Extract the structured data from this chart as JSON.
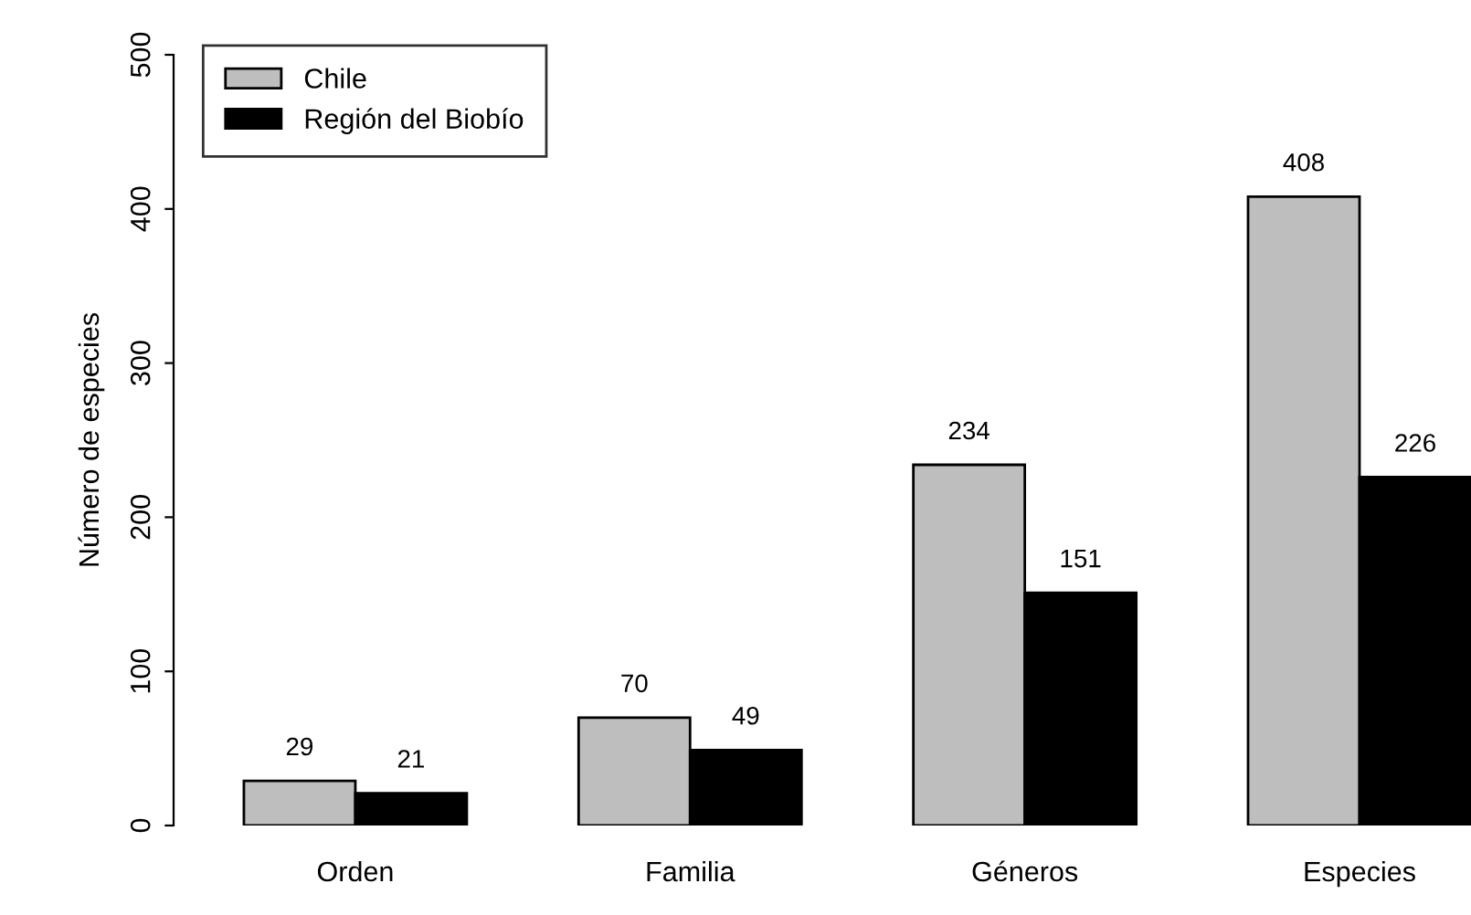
{
  "chart_data": {
    "type": "bar",
    "ylabel": "Número de especies",
    "categories": [
      "Orden",
      "Familia",
      "Géneros",
      "Especies"
    ],
    "series": [
      {
        "name": "Chile",
        "color": "#bebebe",
        "values": [
          29,
          70,
          234,
          408
        ]
      },
      {
        "name": "Región del Biobío",
        "color": "#000000",
        "values": [
          21,
          49,
          151,
          226
        ]
      }
    ],
    "ylim": [
      0,
      500
    ],
    "yticks": [
      0,
      100,
      200,
      300,
      400,
      500
    ],
    "grid": false,
    "legend": "top left",
    "data_labels": true
  }
}
